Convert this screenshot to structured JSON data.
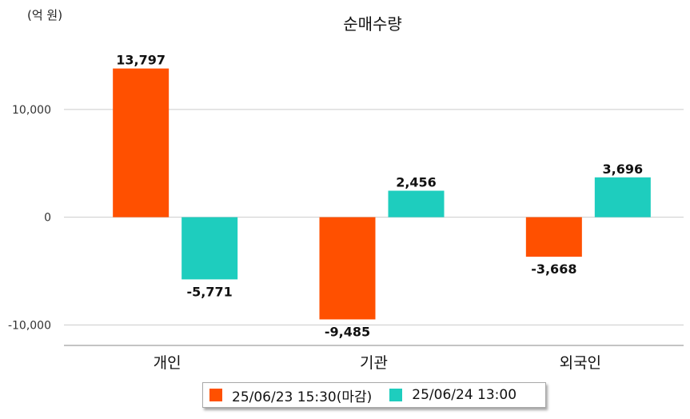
{
  "chart_data": {
    "type": "bar",
    "title": "순매수량",
    "unit_label": "(억 원)",
    "categories": [
      "개인",
      "기관",
      "외국인"
    ],
    "series": [
      {
        "name": "25/06/23 15:30(마감)",
        "color": "#ff5000",
        "values": [
          13797,
          -9485,
          -3668
        ]
      },
      {
        "name": "25/06/24 13:00",
        "color": "#1ecdbe",
        "values": [
          -5771,
          2456,
          3696
        ]
      }
    ],
    "data_labels": [
      [
        "13,797",
        "-9,485",
        "-3,668"
      ],
      [
        "-5,771",
        "2,456",
        "3,696"
      ]
    ],
    "yticks": [
      {
        "value": 10000,
        "label": "10,000"
      },
      {
        "value": 0,
        "label": "0"
      },
      {
        "value": -10000,
        "label": "-10,000"
      }
    ],
    "ylim": [
      -11900,
      15700
    ],
    "grid": true,
    "legend_position": "bottom"
  }
}
